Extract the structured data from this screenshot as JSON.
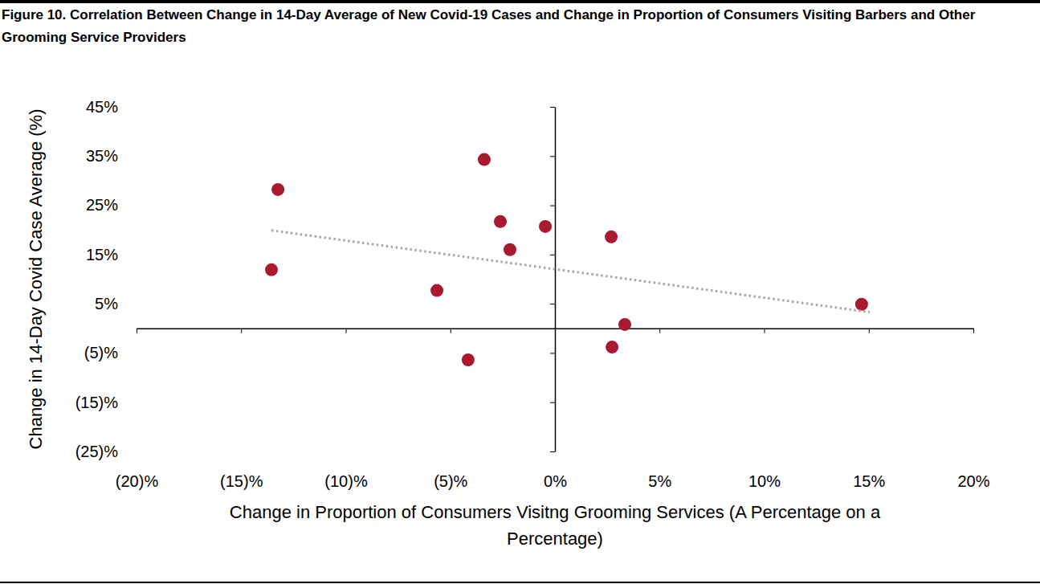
{
  "chart_data": {
    "type": "scatter",
    "title": "Figure 10. Correlation Between Change in 14-Day Average of New Covid-19 Cases and Change in Proportion of Consumers Visiting Barbers and Other Grooming Service Providers",
    "x_label": "Change in Proportion of Consumers Visitng Grooming Services (A Percentage on a Percentage)",
    "y_label": "Change in 14-Day Covid Case Average (%)",
    "series": [
      {
        "type": "scatter",
        "color": "#a9192f",
        "marker": "circle",
        "x": [
          -13.24,
          -13.55,
          -3.38,
          -2.61,
          -2.15,
          -0.46,
          -5.64,
          -4.15,
          2.69,
          3.34,
          2.73,
          14.66
        ],
        "values": [
          28.2,
          11.9,
          34.3,
          21.7,
          16.0,
          20.7,
          7.7,
          -6.4,
          18.6,
          0.8,
          -3.8,
          4.9
        ]
      },
      {
        "type": "line",
        "color": "#a6a6a6",
        "line_style": "dotted",
        "x": [
          -13.55,
          15.05
        ],
        "values": [
          19.9,
          3.3
        ]
      }
    ],
    "xlim": [
      -20,
      20
    ],
    "ylim": [
      -25,
      45
    ],
    "xticks": [
      {
        "value": -20,
        "label": "(20)%"
      },
      {
        "value": -15,
        "label": "(15)%"
      },
      {
        "value": -10,
        "label": "(10)%"
      },
      {
        "value": -5,
        "label": "(5)%"
      },
      {
        "value": 0,
        "label": "0%"
      },
      {
        "value": 5,
        "label": "5%"
      },
      {
        "value": 10,
        "label": "10%"
      },
      {
        "value": 15,
        "label": "15%"
      },
      {
        "value": 20,
        "label": "20%"
      }
    ],
    "yticks": [
      {
        "value": 45,
        "label": "45%"
      },
      {
        "value": 35,
        "label": "35%"
      },
      {
        "value": 25,
        "label": "25%"
      },
      {
        "value": 15,
        "label": "15%"
      },
      {
        "value": 5,
        "label": "5%"
      },
      {
        "value": -5,
        "label": "(5)%"
      },
      {
        "value": -15,
        "label": "(15)%"
      },
      {
        "value": -25,
        "label": "(25)%"
      }
    ],
    "grid": false
  }
}
